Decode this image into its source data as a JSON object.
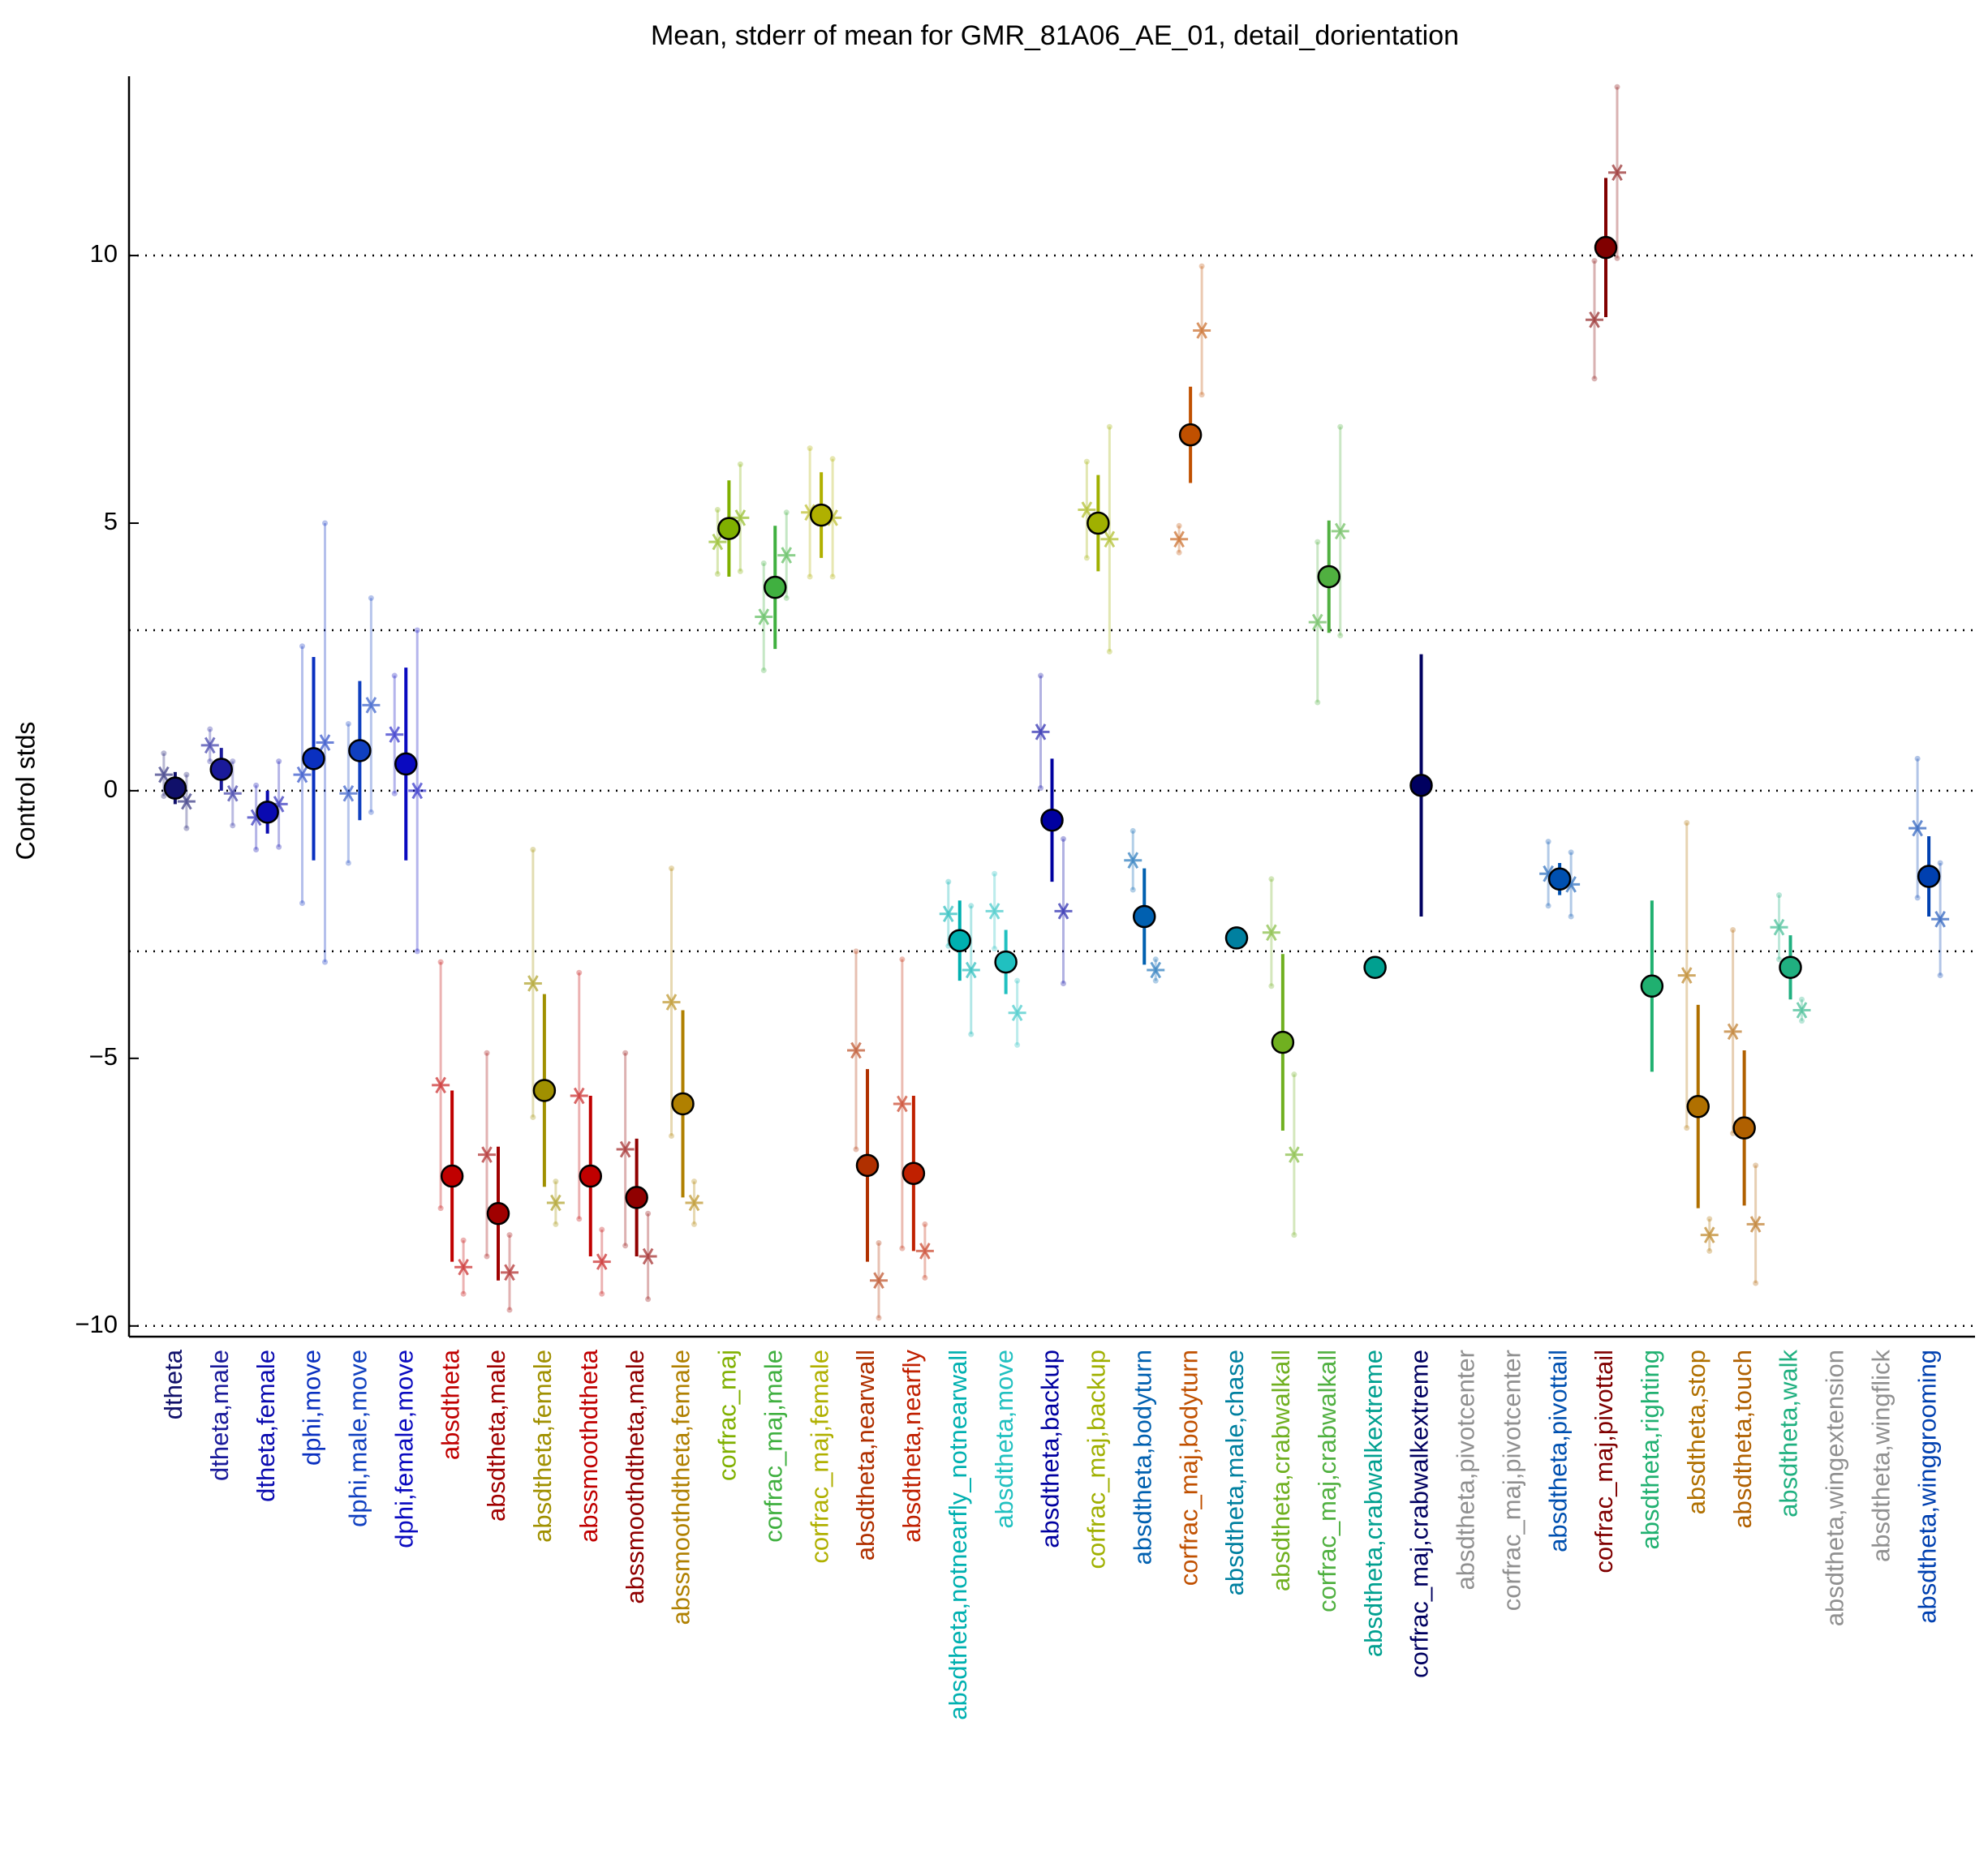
{
  "chart_data": {
    "type": "errorbar",
    "title": "Mean, stderr of mean for GMR_81A06_AE_01, detail_dorientation",
    "ylabel": "Control stds",
    "ylim": [
      -10.2,
      13.35
    ],
    "yticks": [
      {
        "value": -10,
        "label": "−10"
      },
      {
        "value": -5,
        "label": "−5"
      },
      0,
      5,
      10
    ],
    "reference_lines": [
      -10,
      -3,
      0,
      3,
      10
    ],
    "categories": [
      "dtheta",
      "dtheta,male",
      "dtheta,female",
      "dphi,move",
      "dphi,male,move",
      "dphi,female,move",
      "absdtheta",
      "absdtheta,male",
      "absdtheta,female",
      "abssmoothdtheta",
      "abssmoothdtheta,male",
      "abssmoothdtheta,female",
      "corfrac_maj",
      "corfrac_maj,male",
      "corfrac_maj,female",
      "absdtheta,nearwall",
      "absdtheta,nearfly",
      "absdtheta,notnearfly_notnearwall",
      "absdtheta,move",
      "absdtheta,backup",
      "corfrac_maj,backup",
      "absdtheta,bodyturn",
      "corfrac_maj,bodyturn",
      "absdtheta,male,chase",
      "absdtheta,crabwalkall",
      "corfrac_maj,crabwalkall",
      "absdtheta,crabwalkextreme",
      "corfrac_maj,crabwalkextreme",
      "absdtheta,pivotcenter",
      "corfrac_maj,pivotcenter",
      "absdtheta,pivottail",
      "corfrac_maj,pivottail",
      "absdtheta,righting",
      "absdtheta,stop",
      "absdtheta,touch",
      "absdtheta,walk",
      "absdtheta,wingextension",
      "absdtheta,wingflick",
      "absdtheta,winggrooming"
    ],
    "colors": [
      "#10106a",
      "#1a1a9a",
      "#0a0ab0",
      "#0a30c0",
      "#1040c0",
      "#0a0ac0",
      "#c00000",
      "#a00000",
      "#a09000",
      "#c00000",
      "#900000",
      "#b08000",
      "#80b000",
      "#40b040",
      "#b0b000",
      "#b03000",
      "#c02000",
      "#00b0b0",
      "#20c0c0",
      "#0000a0",
      "#a0b000",
      "#0060b0",
      "#c05000",
      "#0080a0",
      "#70b020",
      "#50b040",
      "#00a090",
      "#000060",
      "#909090",
      "#909090",
      "#0050b0",
      "#800000",
      "#20b070",
      "#b07000",
      "#b06000",
      "#20b080",
      "#909090",
      "#909090",
      "#0040b0"
    ],
    "values": [
      0.05,
      0.4,
      -0.4,
      0.6,
      0.75,
      0.5,
      -7.2,
      -7.9,
      -5.6,
      -7.2,
      -7.6,
      -5.85,
      4.9,
      3.8,
      5.15,
      -7.0,
      -7.15,
      -2.8,
      -3.2,
      -0.55,
      5.0,
      -2.35,
      6.65,
      -2.75,
      -4.7,
      4.0,
      -3.3,
      0.1,
      null,
      null,
      -1.65,
      10.15,
      -3.65,
      -5.9,
      -6.3,
      -3.3,
      null,
      null,
      -1.6
    ],
    "errors": [
      0.3,
      0.4,
      0.4,
      1.9,
      1.3,
      1.8,
      1.6,
      1.25,
      1.8,
      1.5,
      1.1,
      1.75,
      0.9,
      1.15,
      0.8,
      1.8,
      1.45,
      0.75,
      0.6,
      1.15,
      0.9,
      0.9,
      0.9,
      0.1,
      1.65,
      1.05,
      0.05,
      2.45,
      null,
      null,
      0.3,
      1.3,
      1.6,
      1.9,
      1.45,
      0.6,
      null,
      null,
      0.75
    ],
    "left_values": [
      0.3,
      0.85,
      -0.5,
      0.3,
      -0.05,
      1.05,
      -5.5,
      -6.8,
      -3.6,
      -5.7,
      -6.7,
      -3.95,
      4.65,
      3.25,
      5.2,
      -4.85,
      -5.85,
      -2.3,
      -2.25,
      1.1,
      5.25,
      -1.3,
      4.7,
      null,
      -2.65,
      3.15,
      null,
      null,
      null,
      null,
      -1.55,
      8.8,
      null,
      -3.45,
      -4.5,
      -2.55,
      null,
      null,
      -0.7
    ],
    "left_errors": [
      0.4,
      0.3,
      0.6,
      2.4,
      1.3,
      1.1,
      2.3,
      1.9,
      2.5,
      2.3,
      1.8,
      2.5,
      0.6,
      1.0,
      1.2,
      1.85,
      2.7,
      0.6,
      0.7,
      1.05,
      0.9,
      0.55,
      0.25,
      null,
      1.0,
      1.5,
      null,
      null,
      null,
      null,
      0.6,
      1.1,
      null,
      2.85,
      1.9,
      0.6,
      null,
      null,
      1.3
    ],
    "right_values": [
      -0.2,
      -0.05,
      -0.25,
      0.9,
      1.6,
      0.0,
      -8.9,
      -9.0,
      -7.7,
      -8.8,
      -8.7,
      -7.7,
      5.1,
      4.4,
      5.1,
      -9.15,
      -8.6,
      -3.35,
      -4.15,
      -2.25,
      4.7,
      -3.35,
      8.6,
      null,
      -6.8,
      4.85,
      null,
      null,
      null,
      null,
      -1.75,
      11.55,
      null,
      -8.3,
      -8.1,
      -4.1,
      null,
      null,
      -2.4
    ],
    "right_errors": [
      0.5,
      0.6,
      0.8,
      4.1,
      2.0,
      3.0,
      0.5,
      0.7,
      0.4,
      0.6,
      0.8,
      0.4,
      1.0,
      0.8,
      1.1,
      0.7,
      0.5,
      1.2,
      0.6,
      1.35,
      2.1,
      0.2,
      1.2,
      null,
      1.5,
      1.95,
      null,
      null,
      null,
      null,
      0.6,
      1.6,
      null,
      0.3,
      1.1,
      0.2,
      null,
      null,
      1.05
    ]
  }
}
